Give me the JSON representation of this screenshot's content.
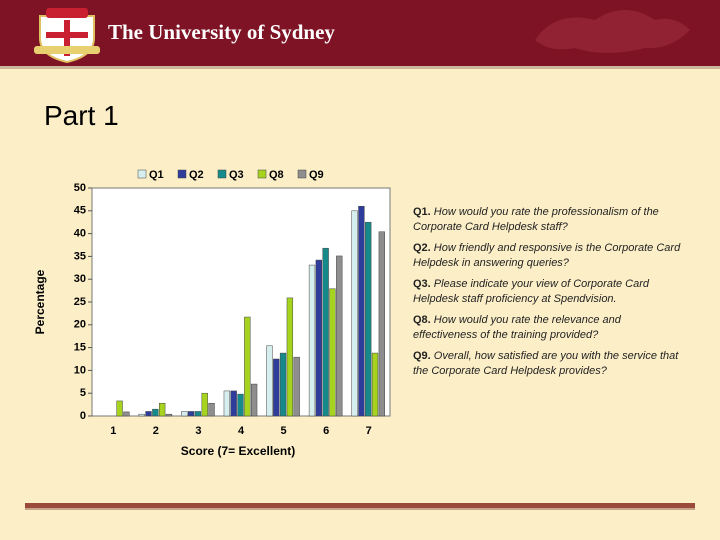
{
  "header": {
    "title": "The University of Sydney"
  },
  "heading": "Part 1",
  "notes": [
    {
      "label": "Q1.",
      "text": "How would you rate the professionalism of the Corporate Card Helpdesk staff?"
    },
    {
      "label": "Q2.",
      "text": "How friendly and responsive is the Corporate Card Helpdesk in answering queries?"
    },
    {
      "label": "Q3.",
      "text": "Please indicate your view of Corporate Card Helpdesk staff proficiency at Spendvision."
    },
    {
      "label": "Q8.",
      "text": "How would you rate the relevance and effectiveness of the training provided?"
    },
    {
      "label": "Q9.",
      "text": "Overall, how satisfied are you with the service that the Corporate Card Helpdesk provides?"
    }
  ],
  "chart_data": {
    "type": "bar",
    "x_label": "Score (7= Excellent)",
    "y_label": "Percentage",
    "categories": [
      "1",
      "2",
      "3",
      "4",
      "5",
      "6",
      "7"
    ],
    "series": [
      {
        "name": "Q1",
        "color": "#d6eeee",
        "values": [
          0,
          0.4,
          1,
          5.5,
          15.4,
          33.1,
          45
        ]
      },
      {
        "name": "Q2",
        "color": "#2e3c9c",
        "values": [
          0,
          1,
          1,
          5.5,
          12.5,
          34.2,
          46
        ]
      },
      {
        "name": "Q3",
        "color": "#168a8a",
        "values": [
          0,
          1.5,
          1,
          4.8,
          13.8,
          36.8,
          42.5
        ]
      },
      {
        "name": "Q8",
        "color": "#a6d41e",
        "values": [
          3.3,
          2.8,
          5,
          21.7,
          25.9,
          27.9,
          13.8
        ]
      },
      {
        "name": "Q9",
        "color": "#8e8e8e",
        "values": [
          0.9,
          0.4,
          2.8,
          7,
          12.9,
          35.1,
          40.4
        ]
      }
    ],
    "ylim": [
      0,
      50
    ],
    "yticks": [
      0,
      5,
      10,
      15,
      20,
      25,
      30,
      35,
      40,
      45,
      50
    ],
    "grid": false
  }
}
